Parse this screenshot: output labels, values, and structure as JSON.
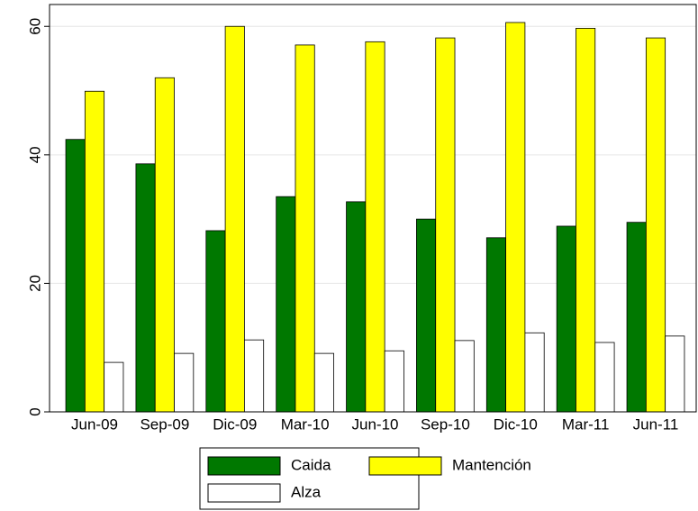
{
  "chart_data": {
    "type": "bar",
    "categories": [
      "Jun-09",
      "Sep-09",
      "Dic-09",
      "Mar-10",
      "Jun-10",
      "Sep-10",
      "Dic-10",
      "Mar-11",
      "Jun-11"
    ],
    "series": [
      {
        "name": "Caida",
        "color": "#007800",
        "values": [
          42.4,
          38.6,
          28.2,
          33.5,
          32.7,
          30.0,
          27.1,
          28.9,
          29.5
        ]
      },
      {
        "name": "Mantención",
        "color": "#ffff00",
        "values": [
          49.9,
          52.0,
          60.0,
          57.1,
          57.6,
          58.2,
          60.6,
          59.7,
          58.2
        ]
      },
      {
        "name": "Alza",
        "color": "#ffffff",
        "values": [
          7.7,
          9.1,
          11.2,
          9.1,
          9.5,
          11.1,
          12.3,
          10.8,
          11.8
        ]
      }
    ],
    "ylim": [
      0,
      63.4
    ],
    "yticks": [
      0,
      20,
      40,
      60
    ],
    "grid": true,
    "legend": "bottom"
  }
}
